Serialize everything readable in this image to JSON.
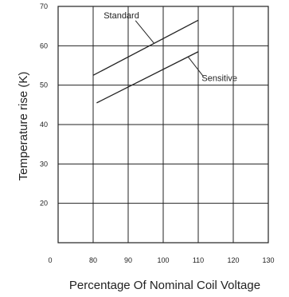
{
  "chart_data": {
    "type": "line",
    "title": "",
    "xlabel": "Percentage Of Nominal Coil Voltage",
    "ylabel": "Temperature rise (K)",
    "xlim": [
      70,
      130
    ],
    "ylim": [
      10,
      70
    ],
    "x_ticks": [
      "0",
      "80",
      "90",
      "100",
      "110",
      "120",
      "130"
    ],
    "y_ticks": [
      "70",
      "60",
      "50",
      "40",
      "30",
      "20"
    ],
    "grid": true,
    "legend": "none",
    "series": [
      {
        "name": "Standard",
        "x": [
          80,
          110
        ],
        "y": [
          52.5,
          66.5
        ],
        "label_at": [
          83,
          67
        ]
      },
      {
        "name": "Sensitive",
        "x": [
          81,
          110
        ],
        "y": [
          45.5,
          58.5
        ],
        "label_at": [
          111,
          51
        ]
      }
    ],
    "colors": {
      "line": "#222222",
      "grid": "#222222",
      "background": "#ffffff"
    }
  }
}
